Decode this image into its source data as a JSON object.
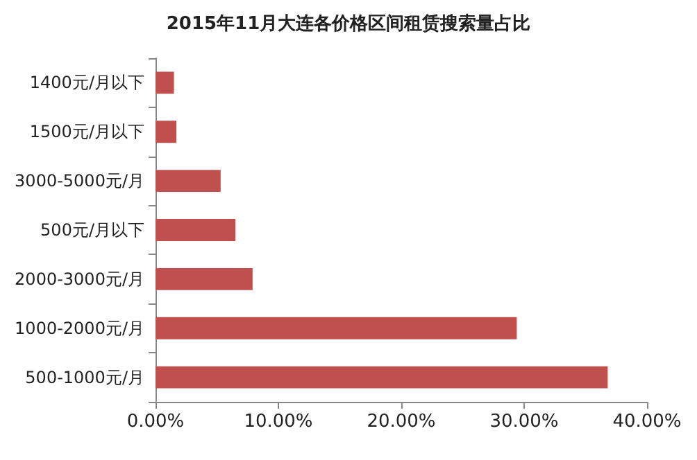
{
  "chart_data": {
    "type": "bar",
    "orientation": "horizontal",
    "title": "2015年11月大连各价格区间租赁搜索量占比",
    "categories": [
      "1400元/月以下",
      "1500元/月以下",
      "3000-5000元/月",
      "500元/月以下",
      "2000-3000元/月",
      "1000-2000元/月",
      "500-1000元/月"
    ],
    "values": [
      1.5,
      1.7,
      5.3,
      6.5,
      7.9,
      29.4,
      36.8
    ],
    "color": "#c0504d",
    "xlim": [
      0,
      40
    ],
    "xticks": [
      {
        "value": 0,
        "label": "0.00%"
      },
      {
        "value": 10,
        "label": "10.00%"
      },
      {
        "value": 20,
        "label": "20.00%"
      },
      {
        "value": 30,
        "label": "30.00%"
      },
      {
        "value": 40,
        "label": "40.00%"
      }
    ],
    "grid": false
  }
}
